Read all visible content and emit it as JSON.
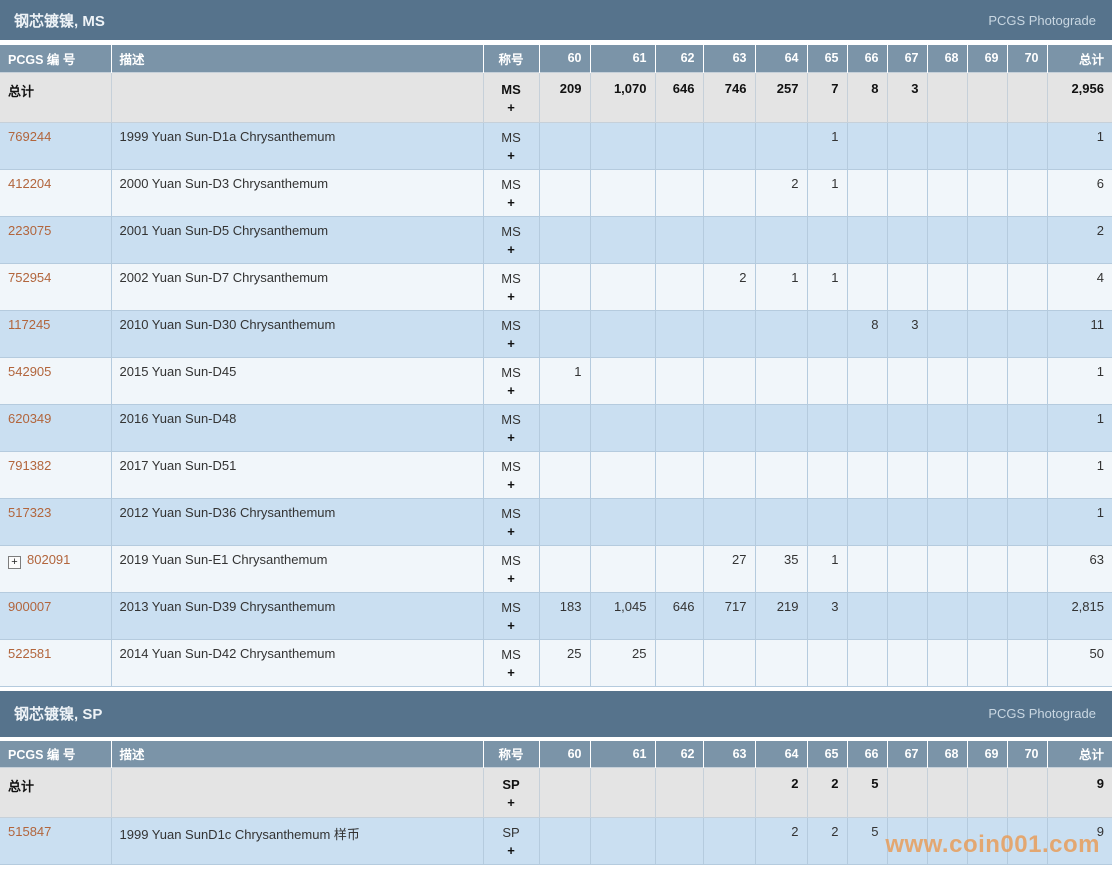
{
  "photograde_label": "PCGS Photograde",
  "totals_label": "总计",
  "headers": [
    "PCGS 编 号",
    "描述",
    "称号",
    "60",
    "61",
    "62",
    "63",
    "64",
    "65",
    "66",
    "67",
    "68",
    "69",
    "70",
    "总计"
  ],
  "watermark": "www.coin001.com",
  "colors": {
    "section_bar": "#56738c",
    "table_header": "#7b94a8",
    "totals_row_bg": "#e4e4e4",
    "row_blue": "#cadff1",
    "row_white": "#f1f6fa",
    "cell_border": "#b5cbde",
    "link": "#b2653c",
    "watermark_orange": "#eb974d"
  },
  "sections": [
    {
      "title": "钢芯镀镍, MS",
      "designation": "MS",
      "plus": "+",
      "totals": [
        "209",
        "1,070",
        "646",
        "746",
        "257",
        "7",
        "8",
        "3",
        "",
        "",
        "",
        "2,956"
      ],
      "rows": [
        {
          "pcgs": "769244",
          "expand": false,
          "desc": "1999 Yuan Sun-D1a Chrysanthemum",
          "values": [
            "",
            "",
            "",
            "",
            "",
            "1",
            "",
            "",
            "",
            "",
            "",
            "1"
          ]
        },
        {
          "pcgs": "412204",
          "expand": false,
          "desc": "2000 Yuan Sun-D3 Chrysanthemum",
          "values": [
            "",
            "",
            "",
            "",
            "2",
            "1",
            "",
            "",
            "",
            "",
            "",
            "6"
          ]
        },
        {
          "pcgs": "223075",
          "expand": false,
          "desc": "2001 Yuan Sun-D5 Chrysanthemum",
          "values": [
            "",
            "",
            "",
            "",
            "",
            "",
            "",
            "",
            "",
            "",
            "",
            "2"
          ]
        },
        {
          "pcgs": "752954",
          "expand": false,
          "desc": "2002 Yuan Sun-D7 Chrysanthemum",
          "values": [
            "",
            "",
            "",
            "2",
            "1",
            "1",
            "",
            "",
            "",
            "",
            "",
            "4"
          ]
        },
        {
          "pcgs": "117245",
          "expand": false,
          "desc": "2010 Yuan Sun-D30 Chrysanthemum",
          "values": [
            "",
            "",
            "",
            "",
            "",
            "",
            "8",
            "3",
            "",
            "",
            "",
            "11"
          ]
        },
        {
          "pcgs": "542905",
          "expand": false,
          "desc": "2015 Yuan Sun-D45",
          "values": [
            "1",
            "",
            "",
            "",
            "",
            "",
            "",
            "",
            "",
            "",
            "",
            "1"
          ]
        },
        {
          "pcgs": "620349",
          "expand": false,
          "desc": "2016 Yuan Sun-D48",
          "values": [
            "",
            "",
            "",
            "",
            "",
            "",
            "",
            "",
            "",
            "",
            "",
            "1"
          ]
        },
        {
          "pcgs": "791382",
          "expand": false,
          "desc": "2017 Yuan Sun-D51",
          "values": [
            "",
            "",
            "",
            "",
            "",
            "",
            "",
            "",
            "",
            "",
            "",
            "1"
          ]
        },
        {
          "pcgs": "517323",
          "expand": false,
          "desc": "2012 Yuan Sun-D36 Chrysanthemum",
          "values": [
            "",
            "",
            "",
            "",
            "",
            "",
            "",
            "",
            "",
            "",
            "",
            "1"
          ]
        },
        {
          "pcgs": "802091",
          "expand": true,
          "desc": "2019 Yuan Sun-E1 Chrysanthemum",
          "values": [
            "",
            "",
            "",
            "27",
            "35",
            "1",
            "",
            "",
            "",
            "",
            "",
            "63"
          ]
        },
        {
          "pcgs": "900007",
          "expand": false,
          "desc": "2013 Yuan Sun-D39 Chrysanthemum",
          "values": [
            "183",
            "1,045",
            "646",
            "717",
            "219",
            "3",
            "",
            "",
            "",
            "",
            "",
            "2,815"
          ]
        },
        {
          "pcgs": "522581",
          "expand": false,
          "desc": "2014 Yuan Sun-D42 Chrysanthemum",
          "values": [
            "25",
            "25",
            "",
            "",
            "",
            "",
            "",
            "",
            "",
            "",
            "",
            "50"
          ]
        }
      ]
    },
    {
      "title": "钢芯镀镍, SP",
      "designation": "SP",
      "plus": "+",
      "totals": [
        "",
        "",
        "",
        "",
        "2",
        "2",
        "5",
        "",
        "",
        "",
        "",
        "9"
      ],
      "rows": [
        {
          "pcgs": "515847",
          "expand": false,
          "desc": "1999 Yuan SunD1c Chrysanthemum 样币",
          "values": [
            "",
            "",
            "",
            "",
            "2",
            "2",
            "5",
            "",
            "",
            "",
            "",
            "9"
          ]
        }
      ]
    }
  ]
}
